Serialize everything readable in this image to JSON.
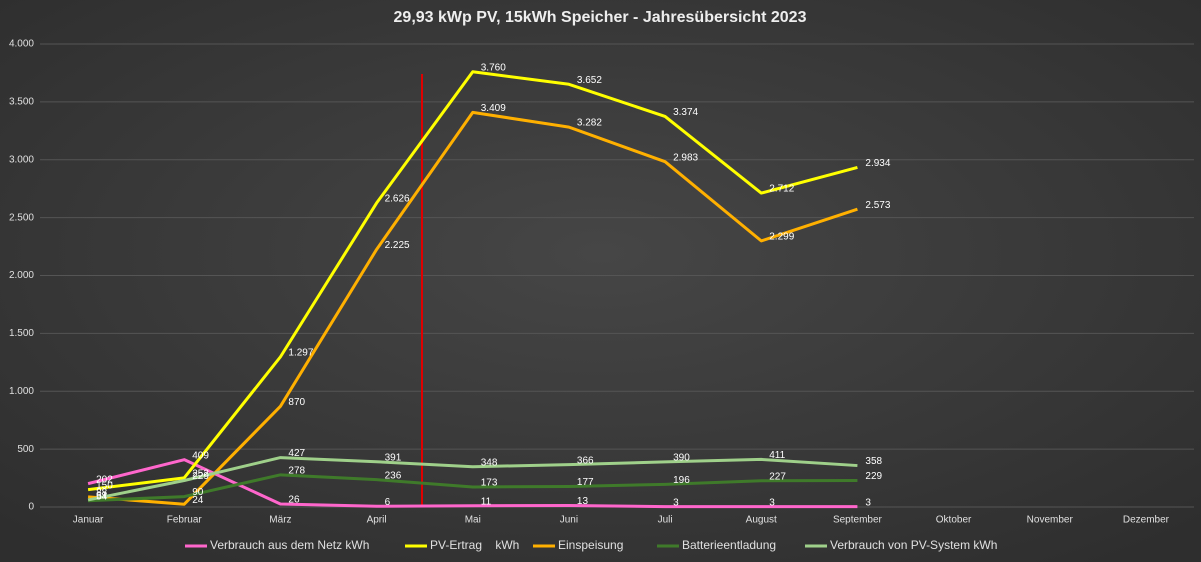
{
  "chart_data": {
    "type": "line",
    "title": "29,93 kWp PV, 15kWh Speicher - Jahresübersicht 2023",
    "categories": [
      "Januar",
      "Februar",
      "März",
      "April",
      "Mai",
      "Juni",
      "Juli",
      "August",
      "September",
      "Oktober",
      "November",
      "Dezember"
    ],
    "ylim": [
      0,
      4000
    ],
    "yticks": [
      0,
      500,
      {
        "value": 1000,
        "label": "1.000"
      },
      {
        "value": 1500,
        "label": "1.500"
      },
      {
        "value": 2000,
        "label": "2.000"
      },
      {
        "value": 2500,
        "label": "2.500"
      },
      {
        "value": 3000,
        "label": "3.000"
      },
      {
        "value": 3500,
        "label": "3.500"
      },
      {
        "value": 4000,
        "label": "4.000"
      }
    ],
    "grid": true,
    "legend": "bottom",
    "series": [
      {
        "name": "Verbrauch aus dem Netz kWh",
        "color": "#ff66cc",
        "values": [
          202,
          409,
          26,
          6,
          11,
          13,
          3,
          3,
          3,
          null,
          null,
          null
        ]
      },
      {
        "name": "PV-Ertrag    kWh",
        "color": "#ffff00",
        "values": [
          150,
          252,
          1297,
          2626,
          3760,
          3652,
          3374,
          2712,
          2934,
          null,
          null,
          null
        ],
        "value_labels": [
          "150",
          "252",
          "1.297",
          "2.626",
          "3.760",
          "3.652",
          "3.374",
          "2.712",
          "2.934",
          null,
          null,
          null
        ]
      },
      {
        "name": "Einspeisung",
        "color": "#ffb000",
        "values": [
          88,
          24,
          870,
          2225,
          3409,
          3282,
          2983,
          2299,
          2573,
          null,
          null,
          null
        ],
        "value_labels": [
          "88",
          "24",
          "870",
          "2.225",
          "3.409",
          "3.282",
          "2.983",
          "2.299",
          "2.573",
          null,
          null,
          null
        ]
      },
      {
        "name": "Batterieentladung",
        "color": "#3f7a2a",
        "values": [
          54,
          90,
          278,
          236,
          173,
          177,
          196,
          227,
          229,
          null,
          null,
          null
        ]
      },
      {
        "name": "Verbrauch von PV-System kWh",
        "color": "#9fd08a",
        "values": [
          61,
          229,
          427,
          391,
          348,
          366,
          390,
          411,
          358,
          null,
          null,
          null
        ]
      }
    ]
  }
}
